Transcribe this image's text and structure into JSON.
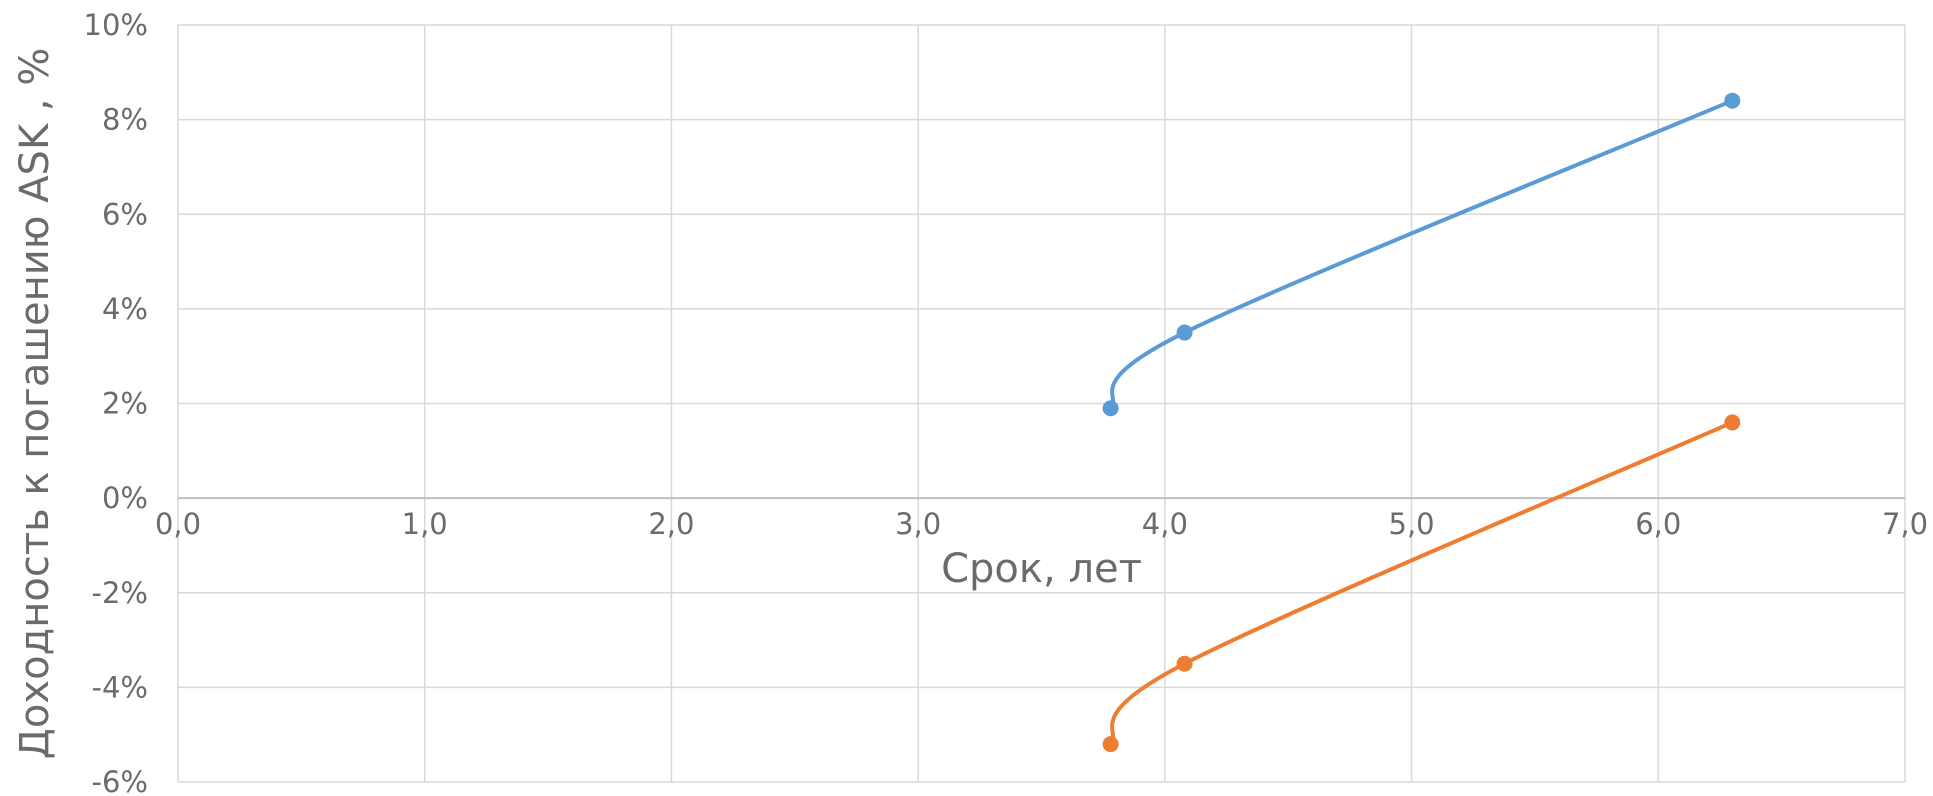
{
  "chart_data": {
    "type": "line",
    "title": "",
    "xlabel": "Срок, лет",
    "ylabel": "Доходность к погашению ASK , %",
    "xlim": [
      0,
      7
    ],
    "ylim": [
      -6,
      10
    ],
    "x_ticks": [
      0,
      1,
      2,
      3,
      4,
      5,
      6,
      7
    ],
    "x_tick_labels": [
      "0,0",
      "1,0",
      "2,0",
      "3,0",
      "4,0",
      "5,0",
      "6,0",
      "7,0"
    ],
    "y_ticks": [
      -6,
      -4,
      -2,
      0,
      2,
      4,
      6,
      8,
      10
    ],
    "y_tick_labels": [
      "-6%",
      "-4%",
      "-2%",
      "0%",
      "2%",
      "4%",
      "6%",
      "8%",
      "10%"
    ],
    "grid": true,
    "legend": "none",
    "smooth": true,
    "series": [
      {
        "color": "#5b9bd5",
        "x": [
          3.78,
          4.08,
          6.3
        ],
        "y": [
          1.9,
          3.5,
          8.4
        ]
      },
      {
        "color": "#ed7d31",
        "x": [
          3.78,
          4.08,
          6.3
        ],
        "y": [
          -5.2,
          -3.5,
          1.6
        ]
      }
    ]
  }
}
